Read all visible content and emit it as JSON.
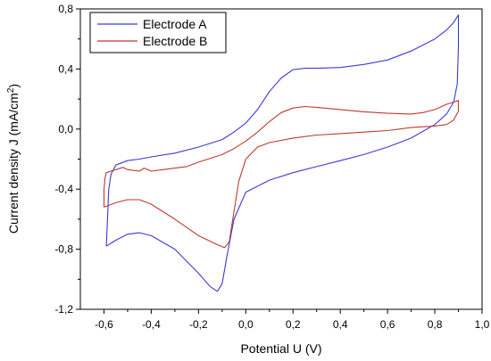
{
  "chart_data": {
    "type": "line",
    "xlabel": "Potential U (V)",
    "ylabel": "Current density J (mA/cm",
    "ylabel_sup": "2",
    "ylabel_close": ")",
    "xlim": [
      -0.7,
      1.0
    ],
    "ylim": [
      -1.2,
      0.8
    ],
    "x_ticks": [
      -0.6,
      -0.4,
      -0.2,
      0.0,
      0.2,
      0.4,
      0.6,
      0.8,
      1.0
    ],
    "x_tick_labels": [
      "-0,6",
      "-0,4",
      "-0,2",
      "0,0",
      "0,2",
      "0,4",
      "0,6",
      "0,8",
      "1,0"
    ],
    "y_ticks": [
      -1.2,
      -0.8,
      -0.4,
      0.0,
      0.4,
      0.8
    ],
    "y_tick_labels": [
      "-1,2",
      "-0,8",
      "-0,4",
      "0,0",
      "0,4",
      "0,8"
    ],
    "grid": false,
    "legend_position": "top-left",
    "series": [
      {
        "name": "Electrode A",
        "color": "#3a3ad6",
        "points": [
          [
            -0.59,
            -0.78
          ],
          [
            -0.585,
            -0.6
          ],
          [
            -0.58,
            -0.4
          ],
          [
            -0.57,
            -0.3
          ],
          [
            -0.55,
            -0.24
          ],
          [
            -0.5,
            -0.21
          ],
          [
            -0.45,
            -0.2
          ],
          [
            -0.4,
            -0.185
          ],
          [
            -0.3,
            -0.16
          ],
          [
            -0.2,
            -0.12
          ],
          [
            -0.1,
            -0.07
          ],
          [
            -0.05,
            -0.02
          ],
          [
            0.0,
            0.04
          ],
          [
            0.05,
            0.13
          ],
          [
            0.1,
            0.25
          ],
          [
            0.15,
            0.34
          ],
          [
            0.2,
            0.395
          ],
          [
            0.25,
            0.405
          ],
          [
            0.3,
            0.405
          ],
          [
            0.4,
            0.41
          ],
          [
            0.5,
            0.43
          ],
          [
            0.6,
            0.46
          ],
          [
            0.7,
            0.52
          ],
          [
            0.8,
            0.6
          ],
          [
            0.85,
            0.66
          ],
          [
            0.88,
            0.71
          ],
          [
            0.9,
            0.76
          ],
          [
            0.9,
            0.55
          ],
          [
            0.895,
            0.3
          ],
          [
            0.88,
            0.18
          ],
          [
            0.85,
            0.1
          ],
          [
            0.8,
            0.03
          ],
          [
            0.7,
            -0.06
          ],
          [
            0.6,
            -0.12
          ],
          [
            0.5,
            -0.17
          ],
          [
            0.4,
            -0.21
          ],
          [
            0.3,
            -0.25
          ],
          [
            0.2,
            -0.29
          ],
          [
            0.1,
            -0.34
          ],
          [
            0.0,
            -0.42
          ],
          [
            -0.05,
            -0.6
          ],
          [
            -0.08,
            -0.85
          ],
          [
            -0.1,
            -1.03
          ],
          [
            -0.12,
            -1.08
          ],
          [
            -0.15,
            -1.05
          ],
          [
            -0.2,
            -0.96
          ],
          [
            -0.3,
            -0.8
          ],
          [
            -0.4,
            -0.71
          ],
          [
            -0.45,
            -0.69
          ],
          [
            -0.5,
            -0.7
          ],
          [
            -0.55,
            -0.74
          ],
          [
            -0.59,
            -0.78
          ]
        ]
      },
      {
        "name": "Electrode B",
        "color": "#c0392b",
        "points": [
          [
            -0.6,
            -0.52
          ],
          [
            -0.6,
            -0.4
          ],
          [
            -0.595,
            -0.32
          ],
          [
            -0.59,
            -0.29
          ],
          [
            -0.55,
            -0.27
          ],
          [
            -0.52,
            -0.255
          ],
          [
            -0.5,
            -0.27
          ],
          [
            -0.45,
            -0.28
          ],
          [
            -0.43,
            -0.26
          ],
          [
            -0.4,
            -0.28
          ],
          [
            -0.35,
            -0.27
          ],
          [
            -0.3,
            -0.26
          ],
          [
            -0.25,
            -0.25
          ],
          [
            -0.2,
            -0.22
          ],
          [
            -0.1,
            -0.17
          ],
          [
            -0.05,
            -0.13
          ],
          [
            0.0,
            -0.08
          ],
          [
            0.05,
            -0.02
          ],
          [
            0.1,
            0.05
          ],
          [
            0.15,
            0.11
          ],
          [
            0.2,
            0.14
          ],
          [
            0.25,
            0.15
          ],
          [
            0.3,
            0.145
          ],
          [
            0.4,
            0.13
          ],
          [
            0.5,
            0.115
          ],
          [
            0.6,
            0.105
          ],
          [
            0.7,
            0.1
          ],
          [
            0.75,
            0.11
          ],
          [
            0.8,
            0.13
          ],
          [
            0.85,
            0.165
          ],
          [
            0.88,
            0.18
          ],
          [
            0.9,
            0.19
          ],
          [
            0.9,
            0.12
          ],
          [
            0.88,
            0.06
          ],
          [
            0.85,
            0.03
          ],
          [
            0.8,
            0.02
          ],
          [
            0.7,
            0.01
          ],
          [
            0.6,
            -0.01
          ],
          [
            0.5,
            -0.02
          ],
          [
            0.4,
            -0.03
          ],
          [
            0.3,
            -0.04
          ],
          [
            0.2,
            -0.06
          ],
          [
            0.1,
            -0.09
          ],
          [
            0.05,
            -0.12
          ],
          [
            0.0,
            -0.2
          ],
          [
            -0.03,
            -0.35
          ],
          [
            -0.05,
            -0.55
          ],
          [
            -0.07,
            -0.75
          ],
          [
            -0.09,
            -0.79
          ],
          [
            -0.12,
            -0.77
          ],
          [
            -0.2,
            -0.71
          ],
          [
            -0.3,
            -0.6
          ],
          [
            -0.4,
            -0.5
          ],
          [
            -0.45,
            -0.47
          ],
          [
            -0.5,
            -0.47
          ],
          [
            -0.55,
            -0.49
          ],
          [
            -0.6,
            -0.52
          ]
        ]
      }
    ]
  }
}
